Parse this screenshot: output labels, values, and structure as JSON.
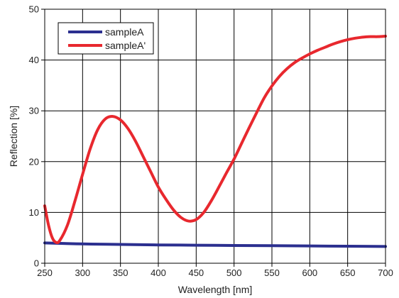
{
  "chart_data": {
    "type": "line",
    "xlabel": "Wavelength [nm]",
    "ylabel": "Reflection [%]",
    "xlim": [
      250,
      700
    ],
    "ylim": [
      0,
      50
    ],
    "x_ticks": [
      250,
      300,
      350,
      400,
      450,
      500,
      550,
      600,
      650,
      700
    ],
    "y_ticks": [
      0,
      10,
      20,
      30,
      40,
      50
    ],
    "x_tick_labels": [
      "250",
      "300",
      "350",
      "400",
      "450",
      "500",
      "550",
      "600",
      "650",
      "700"
    ],
    "y_tick_labels": [
      "0",
      "10",
      "20",
      "30",
      "40",
      "50"
    ],
    "grid": true,
    "legend_position": "top-left",
    "series": [
      {
        "name": "sampleA",
        "color": "#2b2f8f",
        "x": [
          250,
          275,
          300,
          350,
          400,
          450,
          500,
          550,
          600,
          650,
          700
        ],
        "y": [
          4.0,
          3.9,
          3.8,
          3.7,
          3.6,
          3.55,
          3.5,
          3.45,
          3.4,
          3.35,
          3.3
        ]
      },
      {
        "name": "sampleA'",
        "color": "#e8282e",
        "x": [
          250,
          255,
          260,
          265,
          270,
          280,
          290,
          300,
          310,
          320,
          330,
          340,
          350,
          360,
          370,
          380,
          390,
          400,
          410,
          420,
          430,
          440,
          450,
          460,
          470,
          480,
          490,
          500,
          510,
          520,
          530,
          540,
          550,
          560,
          570,
          580,
          590,
          600,
          610,
          620,
          630,
          640,
          650,
          660,
          670,
          680,
          690,
          700
        ],
        "y": [
          11.3,
          7.5,
          5.0,
          4.1,
          4.5,
          7.5,
          12.3,
          17.5,
          22.5,
          26.3,
          28.4,
          28.9,
          28.2,
          26.5,
          24.0,
          21.0,
          18.0,
          15.0,
          12.6,
          10.5,
          9.0,
          8.3,
          8.6,
          10.0,
          12.3,
          15.0,
          17.8,
          20.5,
          23.6,
          26.7,
          29.7,
          32.6,
          34.9,
          36.8,
          38.3,
          39.5,
          40.4,
          41.2,
          41.9,
          42.5,
          43.1,
          43.6,
          44.0,
          44.3,
          44.5,
          44.6,
          44.6,
          44.7
        ]
      }
    ]
  }
}
